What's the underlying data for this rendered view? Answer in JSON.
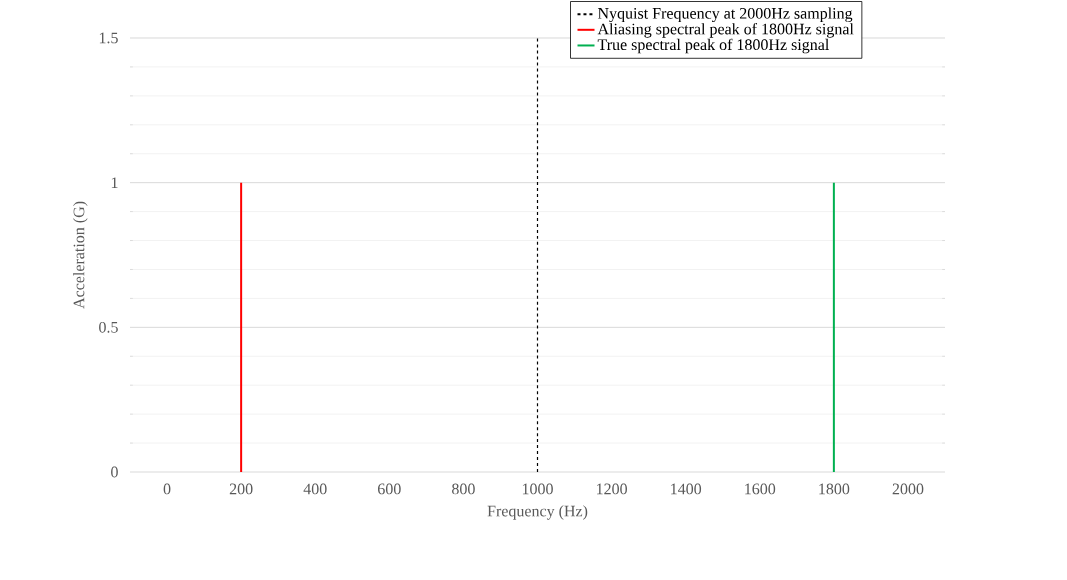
{
  "chart_data": {
    "type": "line",
    "xlabel": "Frequency (Hz)",
    "ylabel": "Acceleration (G)",
    "xlim": [
      -100,
      2100
    ],
    "xticks": [
      0,
      200,
      400,
      600,
      800,
      1000,
      1200,
      1400,
      1600,
      1800,
      2000
    ],
    "ylim": [
      0,
      1.5
    ],
    "yticks": [
      0,
      0.5,
      1,
      1.5
    ],
    "grid": "y",
    "legend": "top right",
    "series": [
      {
        "name": "Nyquist Frequency at 2000Hz sampling",
        "color": "#000000",
        "line_style": "dashed",
        "x": [
          1000,
          1000
        ],
        "values": [
          0,
          1.5
        ]
      },
      {
        "name": "Aliasing spectral peak of 1800Hz signal",
        "color": "#ff0000",
        "x": [
          200,
          200
        ],
        "values": [
          0,
          1
        ]
      },
      {
        "name": "True spectral peak of 1800Hz signal",
        "color": "#00b050",
        "x": [
          1800,
          1800
        ],
        "values": [
          0,
          1
        ]
      }
    ]
  }
}
